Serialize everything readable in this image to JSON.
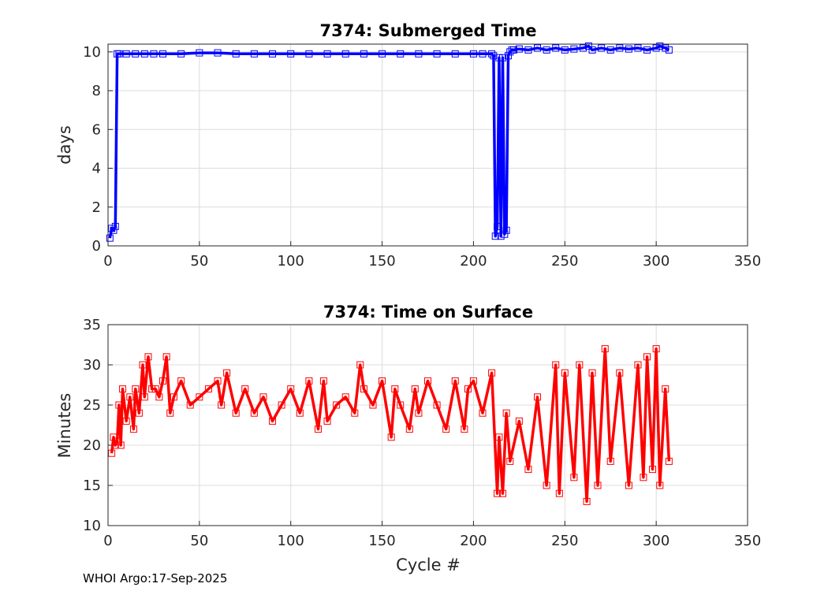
{
  "footer": "WHOI Argo:17-Sep-2025",
  "chart_data": [
    {
      "type": "line",
      "title": "7374: Submerged Time",
      "xlabel": "",
      "ylabel": "days",
      "xlim": [
        0,
        350
      ],
      "ylim": [
        0,
        10.4
      ],
      "xticks": [
        0,
        50,
        100,
        150,
        200,
        250,
        300,
        350
      ],
      "yticks": [
        0,
        2,
        4,
        6,
        8,
        10
      ],
      "grid": true,
      "color": "#0000ff",
      "marker": "square",
      "series": [
        {
          "x": [
            1,
            2,
            3,
            4,
            5,
            6,
            10,
            15,
            20,
            25,
            30,
            40,
            50,
            60,
            70,
            80,
            90,
            100,
            110,
            120,
            130,
            140,
            150,
            160,
            170,
            180,
            190,
            200,
            205,
            210,
            211,
            212,
            213,
            214,
            215,
            216,
            217,
            218,
            219,
            220,
            221,
            222,
            225,
            230,
            235,
            240,
            245,
            250,
            255,
            260,
            263,
            265,
            270,
            275,
            280,
            285,
            290,
            295,
            300,
            302,
            305,
            307
          ],
          "y": [
            0.4,
            0.9,
            0.8,
            1.0,
            9.9,
            9.9,
            9.9,
            9.9,
            9.9,
            9.9,
            9.9,
            9.9,
            9.95,
            9.95,
            9.9,
            9.9,
            9.9,
            9.9,
            9.9,
            9.9,
            9.9,
            9.9,
            9.9,
            9.9,
            9.9,
            9.9,
            9.9,
            9.9,
            9.9,
            9.9,
            9.8,
            0.5,
            1.0,
            9.7,
            0.5,
            9.7,
            0.6,
            0.8,
            9.8,
            10.0,
            10.1,
            10.1,
            10.15,
            10.1,
            10.2,
            10.1,
            10.2,
            10.1,
            10.15,
            10.2,
            10.3,
            10.1,
            10.2,
            10.1,
            10.2,
            10.15,
            10.2,
            10.1,
            10.2,
            10.3,
            10.2,
            10.1
          ]
        }
      ]
    },
    {
      "type": "line",
      "title": "7374: Time on Surface",
      "xlabel": "Cycle #",
      "ylabel": "Minutes",
      "xlim": [
        0,
        350
      ],
      "ylim": [
        10,
        35
      ],
      "xticks": [
        0,
        50,
        100,
        150,
        200,
        250,
        300,
        350
      ],
      "yticks": [
        10,
        15,
        20,
        25,
        30,
        35
      ],
      "grid": true,
      "color": "#ff0000",
      "marker": "square",
      "series": [
        {
          "x": [
            2,
            3,
            4,
            5,
            6,
            7,
            8,
            10,
            12,
            14,
            15,
            17,
            19,
            20,
            22,
            24,
            26,
            28,
            30,
            32,
            34,
            36,
            40,
            45,
            50,
            55,
            60,
            62,
            65,
            70,
            75,
            80,
            85,
            90,
            95,
            100,
            105,
            110,
            115,
            118,
            120,
            125,
            130,
            135,
            138,
            140,
            145,
            150,
            155,
            157,
            160,
            165,
            168,
            170,
            175,
            180,
            185,
            190,
            195,
            197,
            200,
            205,
            210,
            213,
            214,
            216,
            218,
            220,
            225,
            230,
            235,
            240,
            245,
            247,
            250,
            255,
            258,
            262,
            265,
            268,
            272,
            275,
            280,
            285,
            290,
            293,
            295,
            298,
            300,
            302,
            305,
            307
          ],
          "y": [
            19,
            21,
            20,
            20.5,
            25,
            20,
            27,
            23,
            26,
            22,
            27,
            24,
            30,
            26,
            31,
            27,
            27,
            26,
            28,
            31,
            24,
            26,
            28,
            25,
            26,
            27,
            28,
            25,
            29,
            24,
            27,
            24,
            26,
            23,
            25,
            27,
            24,
            28,
            22,
            28,
            23,
            25,
            26,
            24,
            30,
            27,
            25,
            28,
            21,
            27,
            25,
            22,
            27,
            24,
            28,
            25,
            22,
            28,
            22,
            27,
            28,
            24,
            29,
            14,
            21,
            14,
            24,
            18,
            23,
            17,
            26,
            15,
            30,
            14,
            29,
            16,
            30,
            13,
            29,
            15,
            32,
            18,
            29,
            15,
            30,
            16,
            31,
            17,
            32,
            15,
            27,
            18
          ]
        }
      ]
    }
  ]
}
